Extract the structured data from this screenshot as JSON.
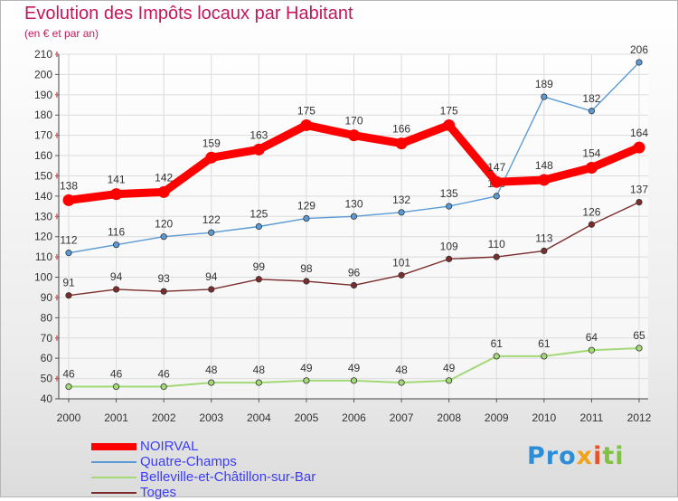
{
  "chart_data": {
    "type": "line",
    "title": "Evolution des Impôts locaux par Habitant",
    "subtitle": "(en € et par an)",
    "x": [
      "2000",
      "2001",
      "2002",
      "2003",
      "2004",
      "2005",
      "2006",
      "2007",
      "2008",
      "2009",
      "2010",
      "2011",
      "2012"
    ],
    "ylim": [
      40,
      210
    ],
    "yticks": [
      40,
      50,
      60,
      70,
      80,
      90,
      100,
      110,
      120,
      130,
      140,
      150,
      160,
      170,
      180,
      190,
      200,
      210
    ],
    "grid": true,
    "legend_position": "bottom-left",
    "series": [
      {
        "name": "NOIRVAL",
        "color": "#ff0000",
        "values": [
          138,
          141,
          142,
          159,
          163,
          175,
          170,
          166,
          175,
          147,
          148,
          154,
          164
        ]
      },
      {
        "name": "Quatre-Champs",
        "color": "#5b9bd5",
        "values": [
          112,
          116,
          120,
          122,
          125,
          129,
          130,
          132,
          135,
          140,
          189,
          182,
          206
        ]
      },
      {
        "name": "Belleville-et-Châtillon-sur-Bar",
        "color": "#a3d977",
        "values": [
          46,
          46,
          46,
          48,
          48,
          49,
          49,
          48,
          49,
          61,
          61,
          64,
          65
        ]
      },
      {
        "name": "Toges",
        "color": "#7b2c2c",
        "values": [
          91,
          94,
          93,
          94,
          99,
          98,
          96,
          101,
          109,
          110,
          113,
          126,
          137
        ]
      }
    ]
  },
  "logo": {
    "text": "Proxiti",
    "parts": [
      "Pro",
      "x",
      "i",
      "ti"
    ]
  }
}
